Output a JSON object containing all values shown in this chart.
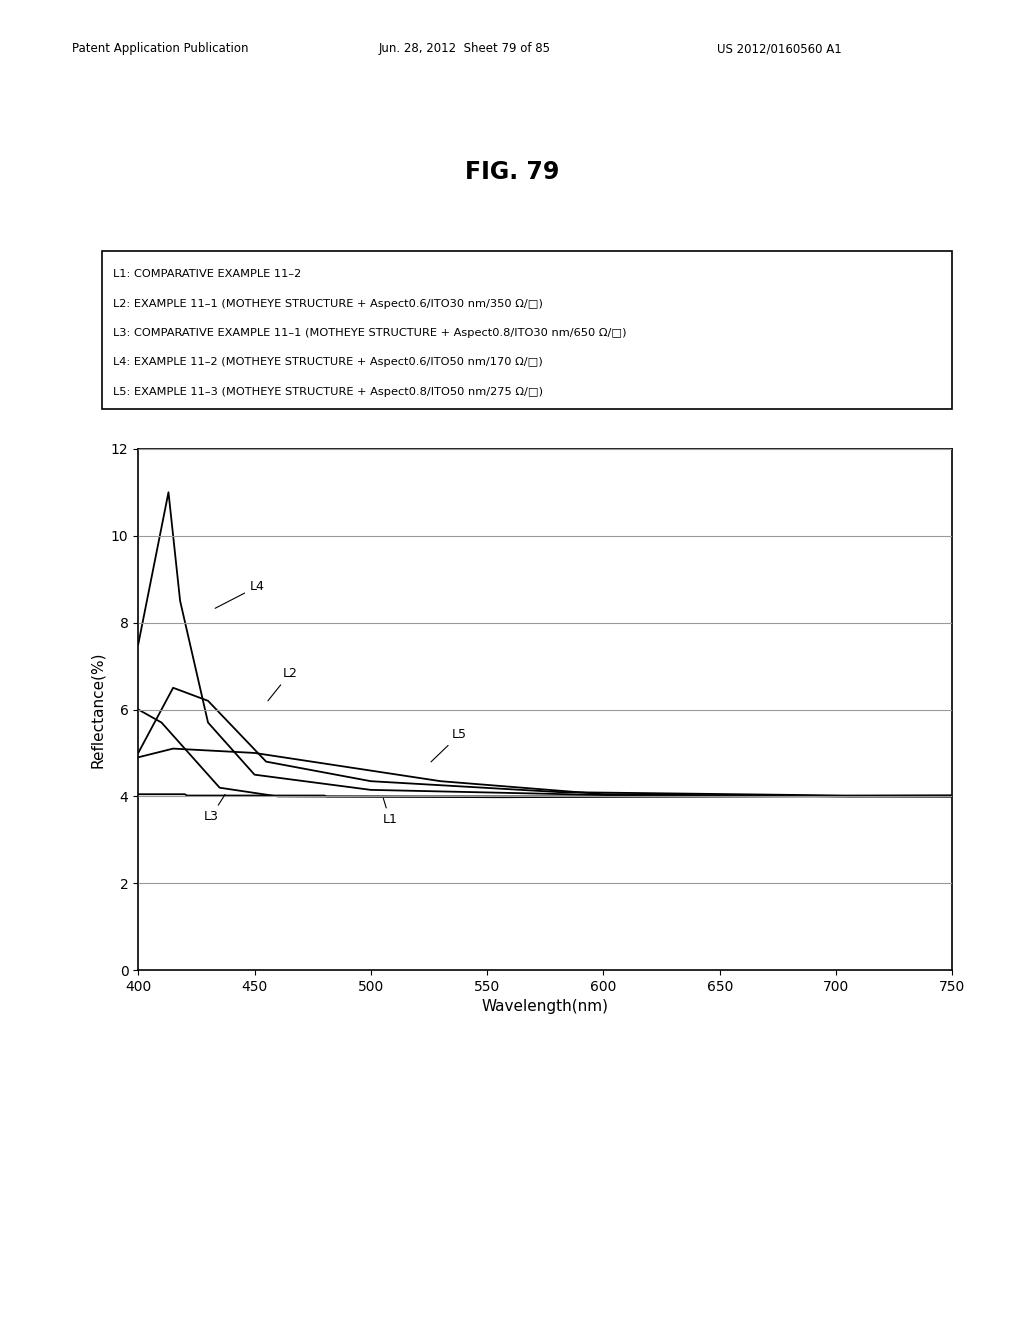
{
  "title": "FIG. 79",
  "xlabel": "Wavelength(nm)",
  "ylabel": "Reflectance(%)",
  "xlim": [
    400,
    750
  ],
  "ylim": [
    0,
    12
  ],
  "yticks": [
    0,
    2,
    4,
    6,
    8,
    10,
    12
  ],
  "xticks": [
    400,
    450,
    500,
    550,
    600,
    650,
    700,
    750
  ],
  "legend_entries": [
    "L1: COMPARATIVE EXAMPLE 11-2",
    "L2: EXAMPLE 11-1 (MOTHEYE STRUCTURE + Aspect0.6/ITO30 nm/350 Ω/□)",
    "L3: COMPARATIVE EXAMPLE 11-1 (MOTHEYE STRUCTURE + Aspect0.8/ITO30 nm/650 Ω/□)",
    "L4: EXAMPLE 11-2 (MOTHEYE STRUCTURE + Aspect0.6/ITO50 nm/170 Ω/□)",
    "L5: EXAMPLE 11-3 (MOTHEYE STRUCTURE + Aspect0.8/ITO50 nm/275 Ω/□)"
  ],
  "header_left": "Patent Application Publication",
  "header_center": "Jun. 28, 2012  Sheet 79 of 85",
  "header_right": "US 2012/0160560 A1",
  "bg_color": "#ffffff",
  "line_color": "#000000",
  "grid_color": "#999999"
}
